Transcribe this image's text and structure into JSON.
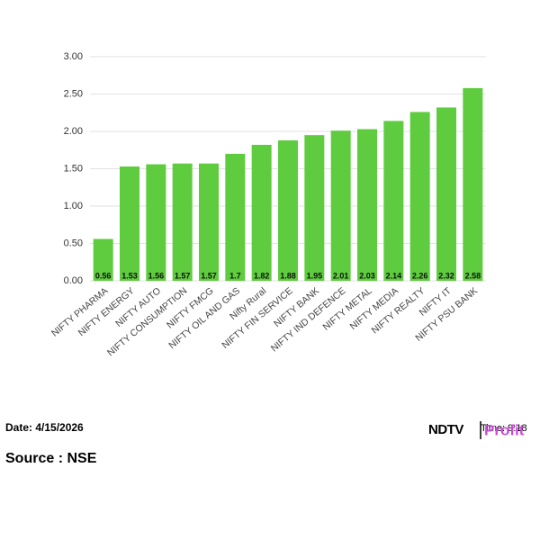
{
  "chart_data": {
    "type": "bar",
    "categories": [
      "NIFTY PHARMA",
      "NIFTY ENERGY",
      "NIFTY AUTO",
      "NIFTY CONSUMPTION",
      "NIFTY FMCG",
      "NIFTY OIL AND GAS",
      "Nifty Rural",
      "NIFTY FIN SERVICE",
      "NIFTY BANK",
      "NIFTY IND DEFENCE",
      "NIFTY METAL",
      "NIFTY MEDIA",
      "NIFTY REALTY",
      "NIFTY IT",
      "NIFTY PSU BANK"
    ],
    "values": [
      0.56,
      1.53,
      1.56,
      1.57,
      1.57,
      1.7,
      1.82,
      1.88,
      1.95,
      2.01,
      2.03,
      2.14,
      2.26,
      2.32,
      2.58
    ],
    "color": "#5fcc3f",
    "ylim": [
      0,
      3
    ],
    "yticks": [
      {
        "value": 0,
        "label": "0.00"
      },
      {
        "value": 0.5,
        "label": "0.50"
      },
      {
        "value": 1,
        "label": "1.00"
      },
      {
        "value": 1.5,
        "label": "1.50"
      },
      {
        "value": 2,
        "label": "2.00"
      },
      {
        "value": 2.5,
        "label": "2.50"
      },
      {
        "value": 3,
        "label": "3.00"
      }
    ],
    "grid": true
  },
  "footer": {
    "date": "Date: 4/15/2026",
    "time": "Time: 9:18",
    "source": "Source : NSE",
    "logo_left": "NDTV",
    "logo_right": "Profit"
  }
}
